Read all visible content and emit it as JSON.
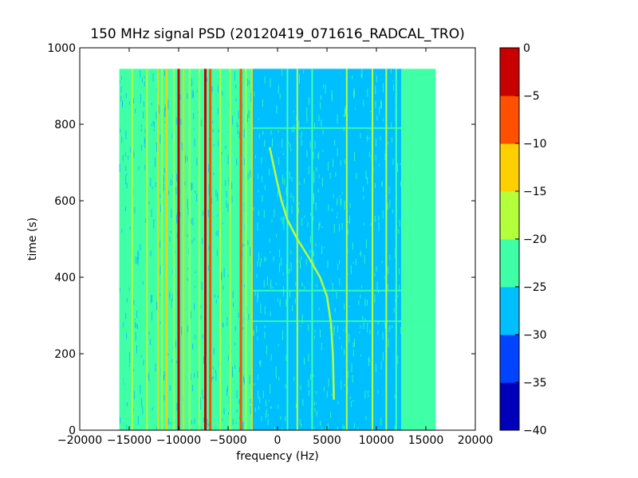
{
  "chart_data": {
    "type": "heatmap",
    "title": "150 MHz signal PSD (20120419_071616_RADCAL_TRO)",
    "xlabel": "frequency (Hz)",
    "ylabel": "time (s)",
    "xlim": [
      -20000,
      20000
    ],
    "ylim": [
      0,
      1000
    ],
    "xticks": [
      -20000,
      -15000,
      -10000,
      -5000,
      0,
      5000,
      10000,
      15000,
      20000
    ],
    "xtick_labels": [
      "−20000",
      "−15000",
      "−10000",
      "−5000",
      "0",
      "5000",
      "10000",
      "15000",
      "20000"
    ],
    "yticks": [
      0,
      200,
      400,
      600,
      800,
      1000
    ],
    "ytick_labels": [
      "0",
      "200",
      "400",
      "600",
      "800",
      "1000"
    ],
    "data_extent": {
      "freq": [
        -16000,
        16000
      ],
      "time": [
        0,
        945
      ]
    },
    "grid": false,
    "colorbar": {
      "levels": [
        -40,
        -35,
        -30,
        -25,
        -20,
        -15,
        -10,
        -5,
        0
      ],
      "tick_labels": [
        "−40",
        "−35",
        "−30",
        "−25",
        "−20",
        "−15",
        "−10",
        "−5",
        "0"
      ],
      "colors": [
        "#0000bb",
        "#0044ff",
        "#00bfff",
        "#3fffa7",
        "#b4ff3c",
        "#ffd000",
        "#ff5000",
        "#c80000"
      ]
    },
    "background_level_dB": {
      "outer_band": -22.5,
      "inner_band": -27.5,
      "inner_band_freq": [
        -2500,
        12500
      ],
      "outer_right_band_freq": [
        13500,
        16000
      ]
    },
    "vertical_lines": [
      {
        "freq": -15500,
        "level": -22.5
      },
      {
        "freq": -14700,
        "level": -17.5
      },
      {
        "freq": -13200,
        "level": -17.5
      },
      {
        "freq": -12100,
        "level": -12.5
      },
      {
        "freq": -11700,
        "level": -17.5
      },
      {
        "freq": -11200,
        "level": -12.5
      },
      {
        "freq": -10500,
        "level": -17.5
      },
      {
        "freq": -10000,
        "level": -2.5
      },
      {
        "freq": -9500,
        "level": -12.5
      },
      {
        "freq": -8900,
        "level": -17.5
      },
      {
        "freq": -7900,
        "level": -17.5
      },
      {
        "freq": -7300,
        "level": -2.5
      },
      {
        "freq": -6800,
        "level": -7.5
      },
      {
        "freq": -5800,
        "level": -17.5
      },
      {
        "freq": -4800,
        "level": -17.5
      },
      {
        "freq": -3700,
        "level": -7.5
      },
      {
        "freq": -3200,
        "level": -17.5
      },
      {
        "freq": -2600,
        "level": -12.5
      },
      {
        "freq": 1000,
        "level": -22.5
      },
      {
        "freq": 2000,
        "level": -17.5
      },
      {
        "freq": 3500,
        "level": -22.5
      },
      {
        "freq": 7000,
        "level": -17.5
      },
      {
        "freq": 9600,
        "level": -17.5
      },
      {
        "freq": 11000,
        "level": -17.5
      },
      {
        "freq": 12000,
        "level": -22.5
      }
    ],
    "sweep": {
      "level": -17.5,
      "points": [
        {
          "t": 80,
          "f": 5700
        },
        {
          "t": 200,
          "f": 5600
        },
        {
          "t": 280,
          "f": 5400
        },
        {
          "t": 350,
          "f": 5000
        },
        {
          "t": 400,
          "f": 4300
        },
        {
          "t": 450,
          "f": 3200
        },
        {
          "t": 500,
          "f": 2000
        },
        {
          "t": 550,
          "f": 1000
        },
        {
          "t": 600,
          "f": 400
        },
        {
          "t": 650,
          "f": -50
        },
        {
          "t": 740,
          "f": -800
        }
      ]
    },
    "horizontal_streaks": [
      {
        "time": 285,
        "level": -22.5
      },
      {
        "time": 365,
        "level": -22.5
      },
      {
        "time": 790,
        "level": -22.5
      }
    ]
  }
}
